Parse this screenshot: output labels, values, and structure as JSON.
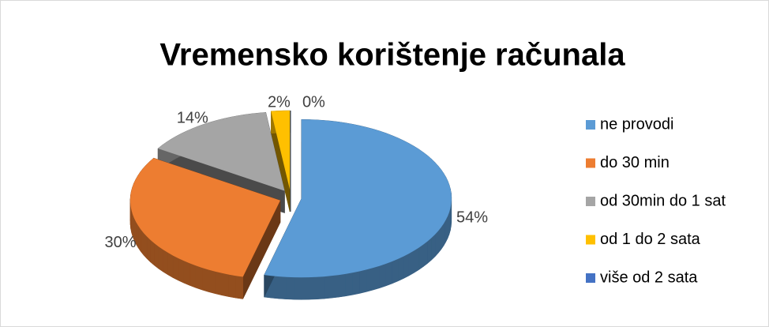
{
  "chart_data": {
    "type": "pie3d",
    "title": "Vremensko korištenje računala",
    "categories": [
      "ne provodi",
      "do 30 min",
      "od 30min do 1 sat",
      "od 1 do 2 sata",
      "više od 2 sata"
    ],
    "values": [
      54,
      30,
      14,
      2,
      0
    ],
    "value_labels": [
      "54%",
      "30%",
      "14%",
      "2%",
      "0%"
    ],
    "colors": [
      "#5b9bd5",
      "#ed7d31",
      "#a5a5a5",
      "#ffc000",
      "#4472c4"
    ],
    "legend": "right"
  }
}
